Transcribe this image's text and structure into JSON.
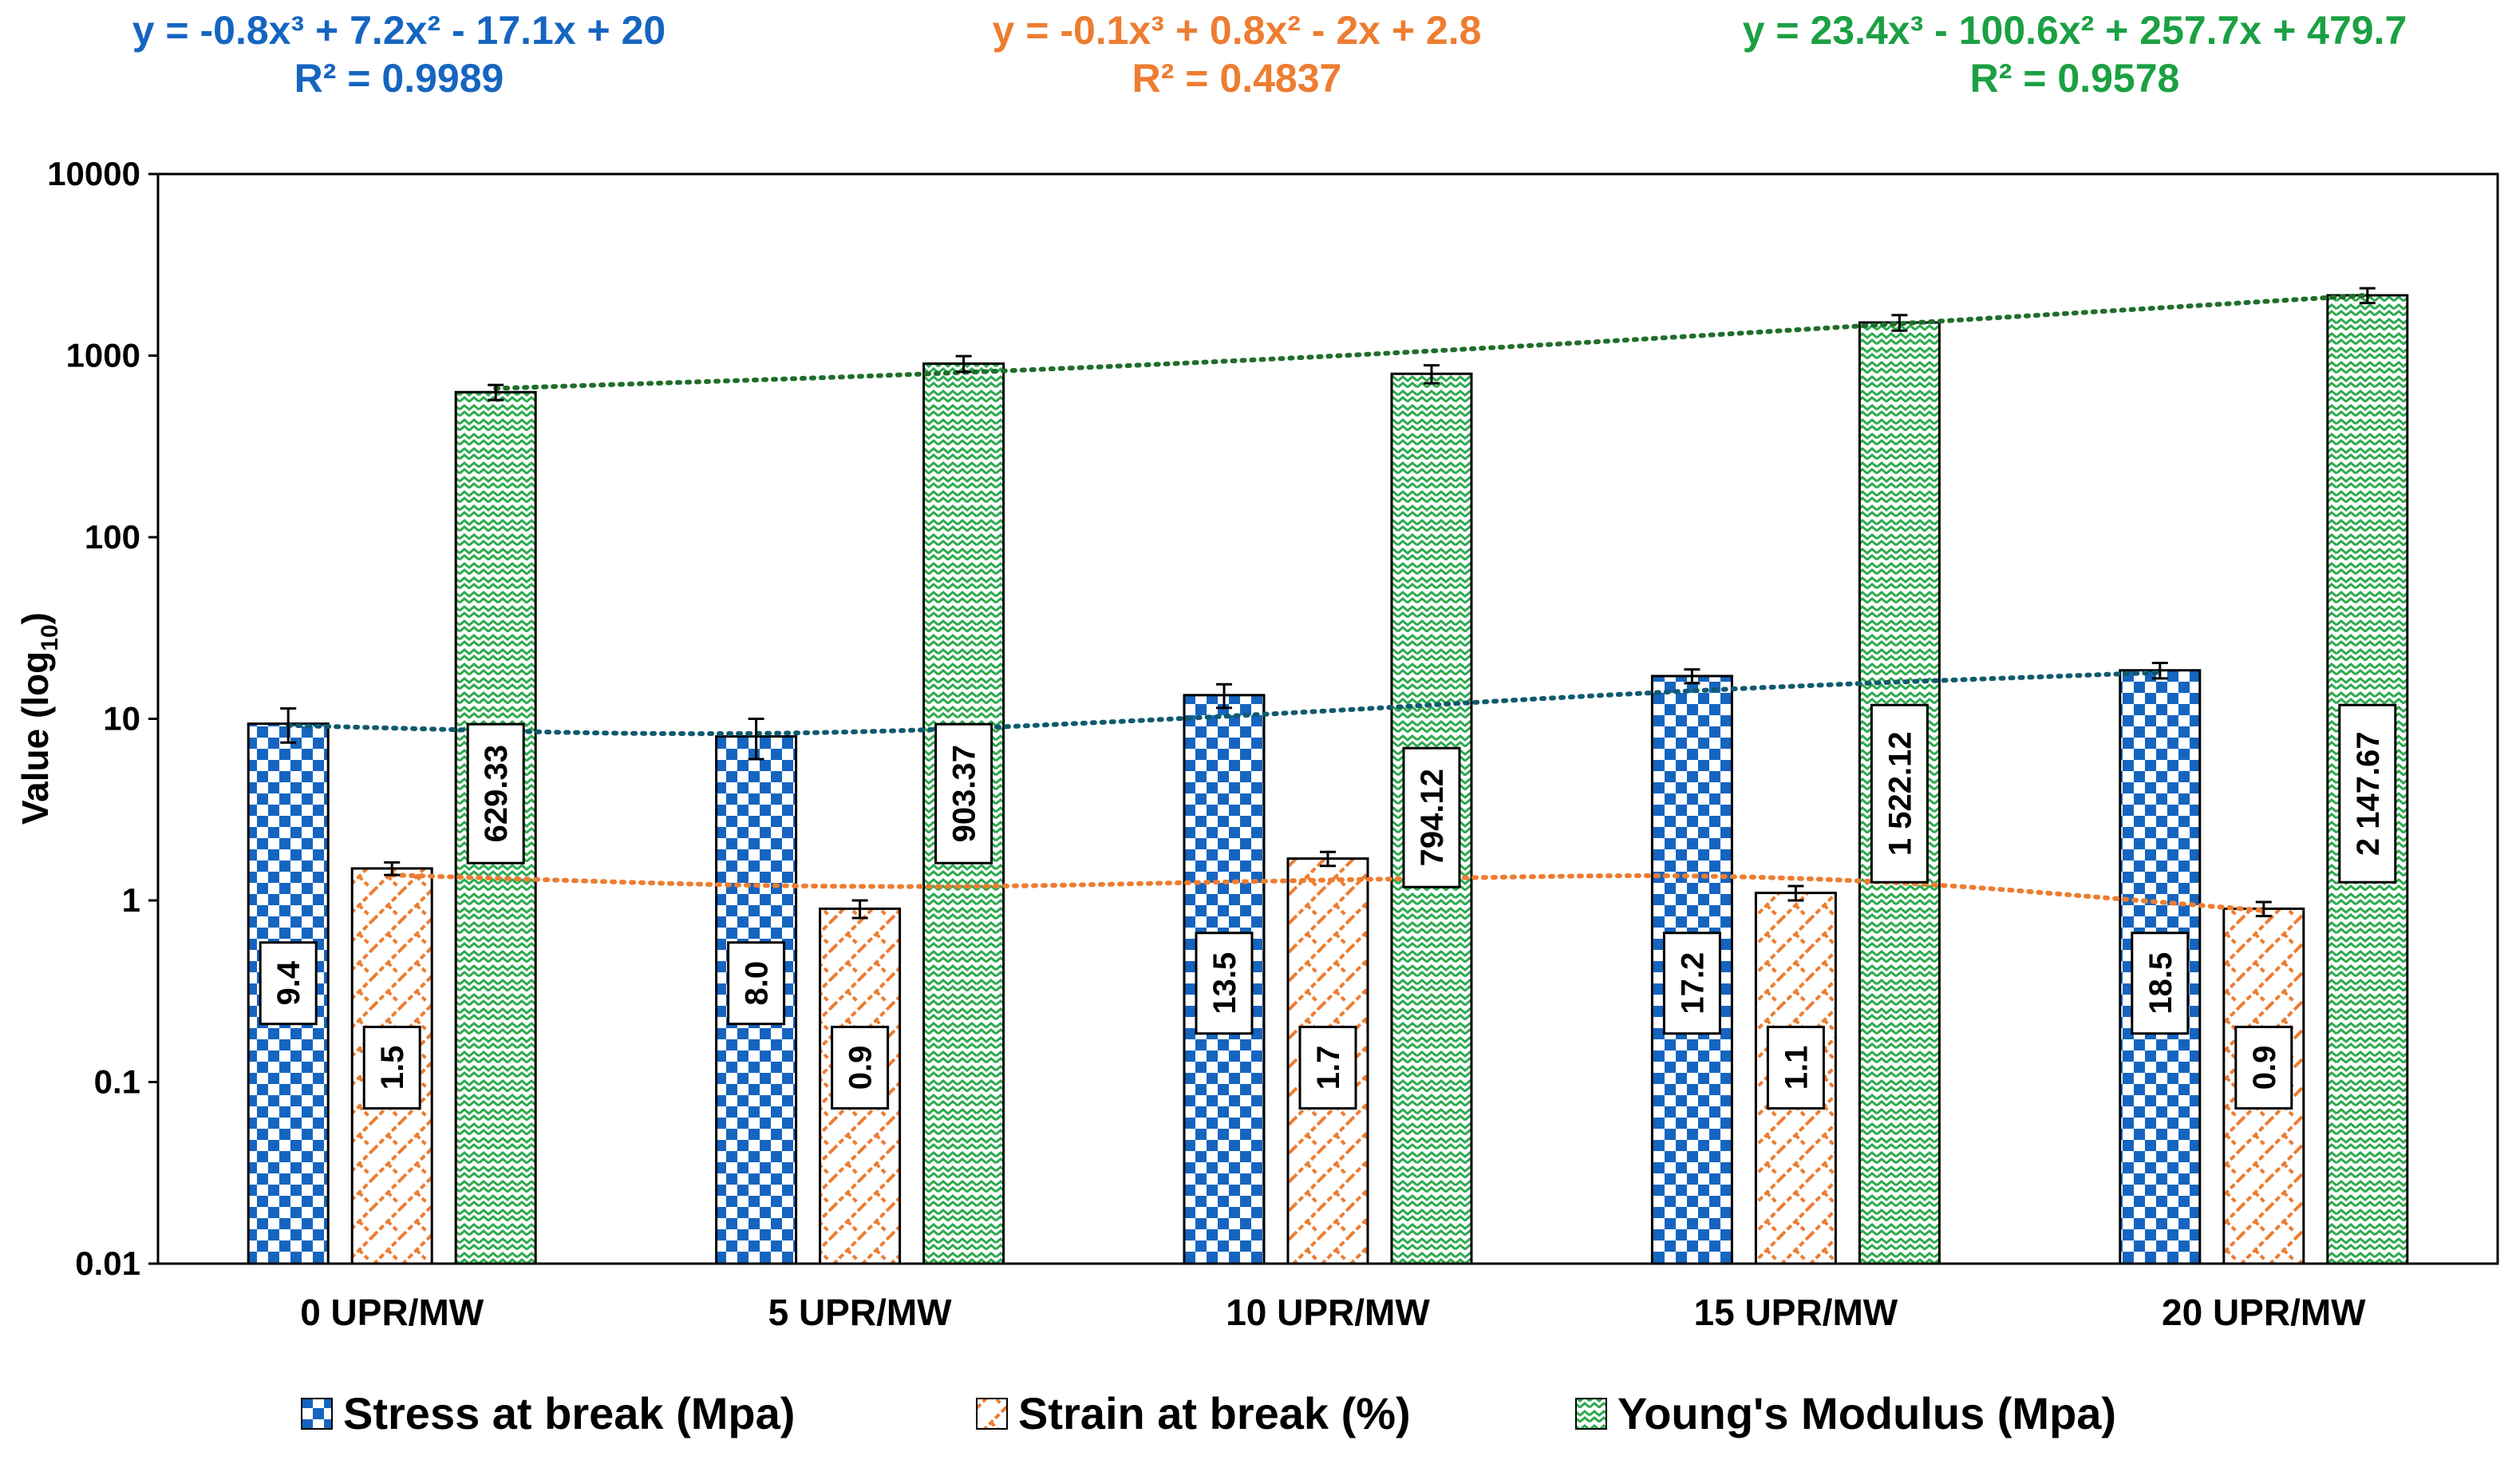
{
  "chart_data": {
    "type": "bar",
    "title": "",
    "xlabel": "",
    "ylabel": "Value (log",
    "ylabel_sub": "10",
    "ylabel_close": ")",
    "yscale": "log",
    "ylim": [
      0.01,
      10000
    ],
    "yticks": [
      "0.01",
      "0.1",
      "1",
      "10",
      "100",
      "1000",
      "10000"
    ],
    "categories": [
      "0 UPR/MW",
      "5 UPR/MW",
      "10 UPR/MW",
      "15 UPR/MW",
      "20 UPR/MW"
    ],
    "series": [
      {
        "name": "Stress at break (Mpa)",
        "color": "#1565C0",
        "pattern": "checker",
        "values": [
          9.4,
          8.0,
          13.5,
          17.2,
          18.5
        ],
        "labels": [
          "9.4",
          "8.0",
          "13.5",
          "17.2",
          "18.5"
        ],
        "errors": [
          2.0,
          2.0,
          2.0,
          1.5,
          1.8
        ],
        "trend": {
          "equation": "y = -0.8x³ + 7.2x² - 17.1x + 20",
          "r2": "R² = 0.9989",
          "color": "#1565C0",
          "line_color": "#0F5A6E"
        }
      },
      {
        "name": "Strain at break (%)",
        "color": "#ED7D31",
        "pattern": "diagonal-brick",
        "values": [
          1.5,
          0.9,
          1.7,
          1.1,
          0.9
        ],
        "labels": [
          "1.5",
          "0.9",
          "1.7",
          "1.1",
          "0.9"
        ],
        "errors": [
          0.12,
          0.1,
          0.15,
          0.1,
          0.08
        ],
        "trend": {
          "equation": "y = -0.1x³ + 0.8x² - 2x + 2.8",
          "r2": "R² = 0.4837",
          "color": "#ED7D31",
          "line_color": "#ED7D31"
        }
      },
      {
        "name": "Young's Modulus (Mpa)",
        "color": "#2EAA4F",
        "pattern": "zigzag",
        "values": [
          629.33,
          903.37,
          794.12,
          1522.12,
          2147.67
        ],
        "labels": [
          "629.33",
          "903.37",
          "794.12",
          "1 522.12",
          "2 147.67"
        ],
        "errors": [
          60,
          90,
          90,
          150,
          200
        ],
        "trend": {
          "equation": "y = 23.4x³ - 100.6x² + 257.7x + 479.7",
          "r2": "R² = 0.9578",
          "color": "#1BA043",
          "line_color": "#1F6E2A"
        }
      }
    ],
    "trendline_values": [
      [
        9.2,
        7.9,
        10.2,
        14.5,
        18.0
      ],
      [
        1.38,
        1.15,
        1.3,
        1.42,
        0.88
      ],
      [
        660,
        800,
        1050,
        1500,
        2150
      ]
    ],
    "legend_position": "bottom",
    "grid": false
  }
}
